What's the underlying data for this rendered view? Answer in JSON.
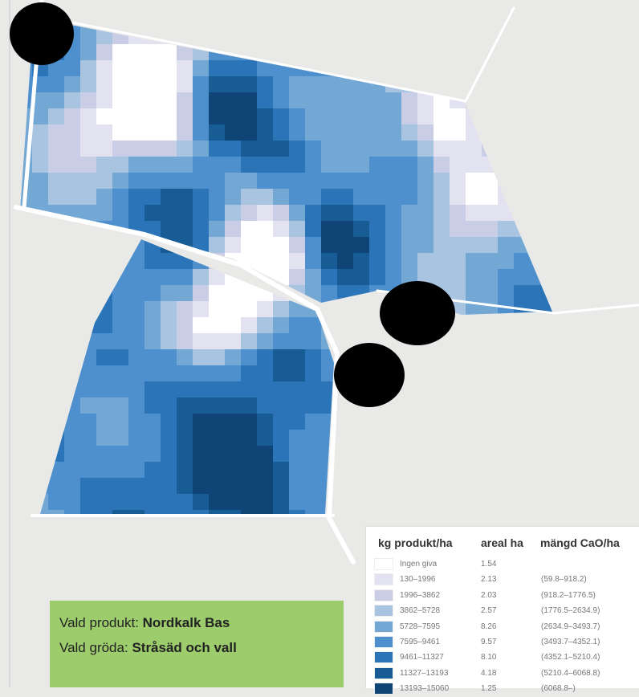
{
  "legend": {
    "headers": [
      "kg produkt/ha",
      "areal ha",
      "mängd CaO/ha"
    ],
    "rows": [
      {
        "range": "Ingen giva",
        "area": "1.54",
        "amount": null,
        "color": "#ffffff"
      },
      {
        "range": "130–1996",
        "area": "2.13",
        "amount": "(59.8–918.2)",
        "color": "#e3e2f1"
      },
      {
        "range": "1996–3862",
        "area": "2.03",
        "amount": "(918.2–1776.5)",
        "color": "#c9cde6"
      },
      {
        "range": "3862–5728",
        "area": "2.57",
        "amount": "(1776.5–2634.9)",
        "color": "#a9c4e1"
      },
      {
        "range": "5728–7595",
        "area": "8.26",
        "amount": "(2634.9–3493.7)",
        "color": "#73a8d5"
      },
      {
        "range": "7595–9461",
        "area": "9.57",
        "amount": "(3493.7–4352.1)",
        "color": "#4e90cd"
      },
      {
        "range": "9461–11327",
        "area": "8.10",
        "amount": "(4352.1–5210.4)",
        "color": "#2b74b8"
      },
      {
        "range": "11327–13193",
        "area": "4.18",
        "amount": "(5210.4–6068.8)",
        "color": "#185c95"
      },
      {
        "range": "13193–15060",
        "area": "1.25",
        "amount": "(6068.8–)",
        "color": "#0e4576"
      }
    ]
  },
  "info": {
    "product_label": "Vald produkt:",
    "product": "Nordkalk Bas",
    "crop_label": "Vald gröda:",
    "crop": "Stråsäd och vall"
  }
}
